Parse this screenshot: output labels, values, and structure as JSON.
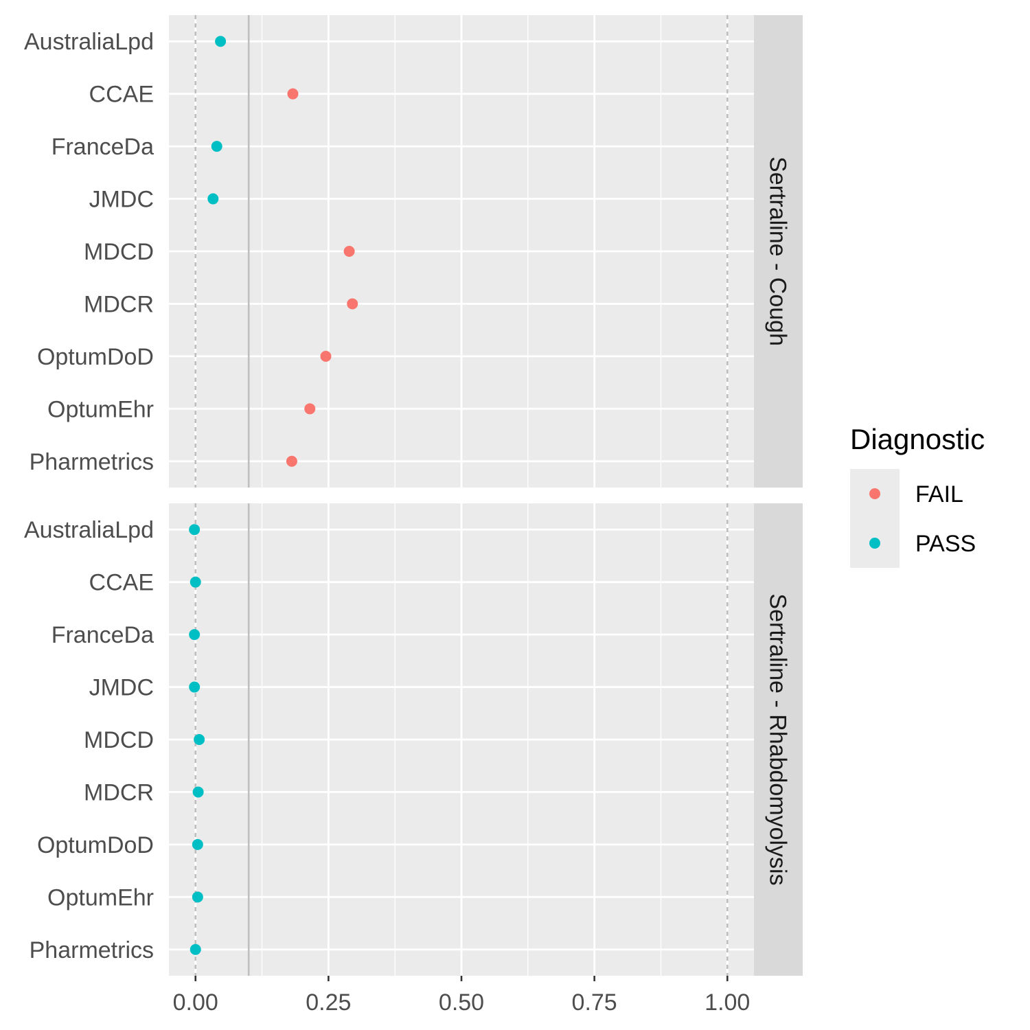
{
  "chart_data": {
    "type": "scatter",
    "x_ticks": [
      0,
      0.25,
      0.5,
      0.75,
      1.0
    ],
    "x_tick_labels": [
      "0.00",
      "0.25",
      "0.50",
      "0.75",
      "1.00"
    ],
    "xlim": [
      -0.05,
      1.05
    ],
    "threshold_line": 0.1,
    "dashed_lines": [
      0,
      1.0
    ],
    "categories": [
      "AustraliaLpd",
      "CCAE",
      "FranceDa",
      "JMDC",
      "MDCD",
      "MDCR",
      "OptumDoD",
      "OptumEhr",
      "Pharmetrics"
    ],
    "legend": {
      "title": "Diagnostic",
      "position": "right",
      "entries": [
        {
          "label": "FAIL",
          "color": "#F8766D"
        },
        {
          "label": "PASS",
          "color": "#00BFC4"
        }
      ]
    },
    "panels": [
      {
        "strip": "Sertraline - Cough",
        "points": [
          {
            "category": "AustraliaLpd",
            "x": 0.047,
            "status": "PASS"
          },
          {
            "category": "CCAE",
            "x": 0.183,
            "status": "FAIL"
          },
          {
            "category": "FranceDa",
            "x": 0.04,
            "status": "PASS"
          },
          {
            "category": "JMDC",
            "x": 0.033,
            "status": "PASS"
          },
          {
            "category": "MDCD",
            "x": 0.289,
            "status": "FAIL"
          },
          {
            "category": "MDCR",
            "x": 0.295,
            "status": "FAIL"
          },
          {
            "category": "OptumDoD",
            "x": 0.245,
            "status": "FAIL"
          },
          {
            "category": "OptumEhr",
            "x": 0.215,
            "status": "FAIL"
          },
          {
            "category": "Pharmetrics",
            "x": 0.181,
            "status": "FAIL"
          }
        ]
      },
      {
        "strip": "Sertraline - Rhabdomyolysis",
        "points": [
          {
            "category": "AustraliaLpd",
            "x": -0.002,
            "status": "PASS"
          },
          {
            "category": "CCAE",
            "x": 0.0,
            "status": "PASS"
          },
          {
            "category": "FranceDa",
            "x": -0.002,
            "status": "PASS"
          },
          {
            "category": "JMDC",
            "x": -0.002,
            "status": "PASS"
          },
          {
            "category": "MDCD",
            "x": 0.007,
            "status": "PASS"
          },
          {
            "category": "MDCR",
            "x": 0.005,
            "status": "PASS"
          },
          {
            "category": "OptumDoD",
            "x": 0.004,
            "status": "PASS"
          },
          {
            "category": "OptumEhr",
            "x": 0.004,
            "status": "PASS"
          },
          {
            "category": "Pharmetrics",
            "x": 0.0,
            "status": "PASS"
          }
        ]
      }
    ],
    "colors": {
      "panel_bg": "#EBEBEB",
      "strip_bg": "#D9D9D9",
      "grid": "#FFFFFF",
      "ref_line": "#BEBEBE",
      "fail": "#F8766D",
      "pass": "#00BFC4"
    }
  }
}
